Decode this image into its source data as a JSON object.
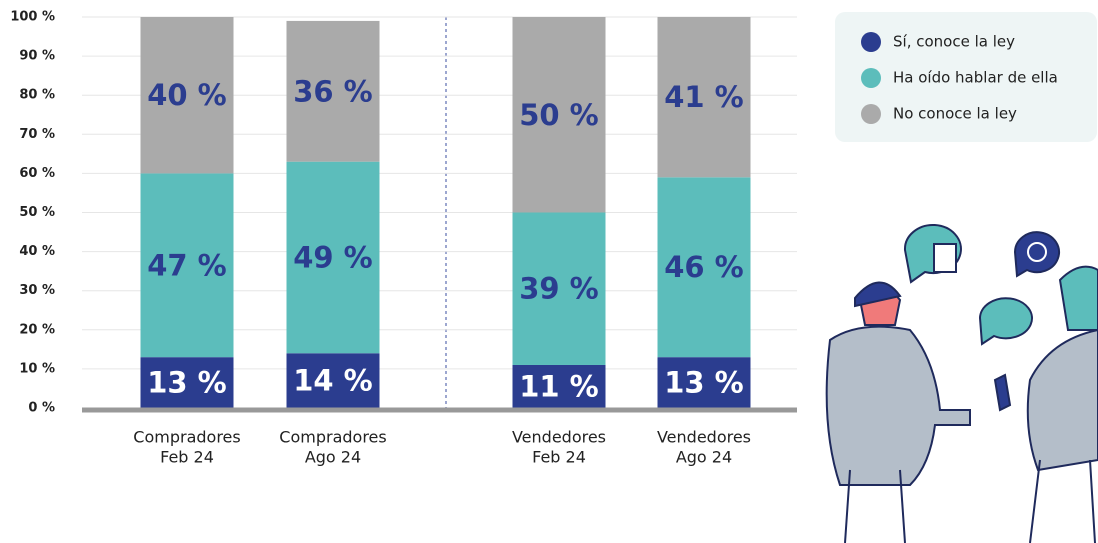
{
  "chart_data": {
    "type": "stacked-bar",
    "categories": [
      [
        "Compradores",
        "Feb 24"
      ],
      [
        "Compradores",
        "Ago 24"
      ],
      [
        "Vendedores",
        "Feb 24"
      ],
      [
        "Vendedores",
        "Ago 24"
      ]
    ],
    "series": [
      {
        "name": "Sí, conoce la ley",
        "color": "#2b3d8f",
        "values": [
          13,
          14,
          11,
          13
        ],
        "value_labels": [
          "13 %",
          "14 %",
          "11 %",
          "13 %"
        ]
      },
      {
        "name": "Ha oído hablar de ella",
        "color": "#5cbdbb",
        "values": [
          47,
          49,
          39,
          46
        ],
        "value_labels": [
          "47 %",
          "49 %",
          "39 %",
          "46 %"
        ]
      },
      {
        "name": "No conoce la ley",
        "color": "#aaaaaa",
        "values": [
          40,
          36,
          50,
          41
        ],
        "value_labels": [
          "40 %",
          "36 %",
          "50 %",
          "41 %"
        ]
      }
    ],
    "ylim": [
      0,
      100
    ],
    "yticks": [
      {
        "value": 0,
        "label": "0 %"
      },
      {
        "value": 10,
        "label": "10 %"
      },
      {
        "value": 20,
        "label": "20 %"
      },
      {
        "value": 30,
        "label": "30 %"
      },
      {
        "value": 40,
        "label": "40 %"
      },
      {
        "value": 50,
        "label": "50 %"
      },
      {
        "value": 60,
        "label": "60 %"
      },
      {
        "value": 70,
        "label": "70 %"
      },
      {
        "value": 80,
        "label": "80 %"
      },
      {
        "value": 90,
        "label": "90 %"
      },
      {
        "value": 100,
        "label": "100 %"
      }
    ],
    "grid": true
  }
}
